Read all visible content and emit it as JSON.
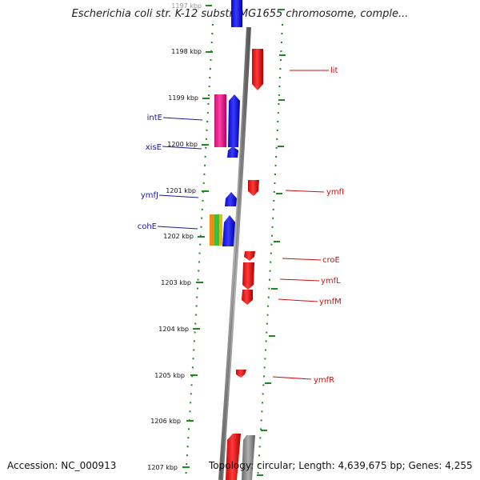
{
  "title": "Escherichia coli str. K-12 substr. MG1655 chromosome, comple...",
  "footer": {
    "accession": "Accession: NC_000913",
    "topology": "Topology: circular; Length: 4,639,675 bp; Genes: 4,255"
  },
  "colors": {
    "forward": "#1010ee",
    "reverse": "#ee1010",
    "integrase": "#ee2090",
    "backbone": "#8a8a8a",
    "tick": "#1e8a1e",
    "left_label": "#1a1aa0",
    "right_label": "#cc1010"
  },
  "ticks": [
    "1197 kbp",
    "1198 kbp",
    "1199 kbp",
    "1200 kbp",
    "1201 kbp",
    "1202 kbp",
    "1203 kbp",
    "1204 kbp",
    "1205 kbp",
    "1206 kbp",
    "1207 kbp"
  ],
  "labels_left": [
    "intE",
    "xisE",
    "ymfJ",
    "cohE"
  ],
  "labels_right": [
    "lit",
    "ymfI",
    "croE",
    "ymfL",
    "ymfM",
    "ymfR"
  ]
}
